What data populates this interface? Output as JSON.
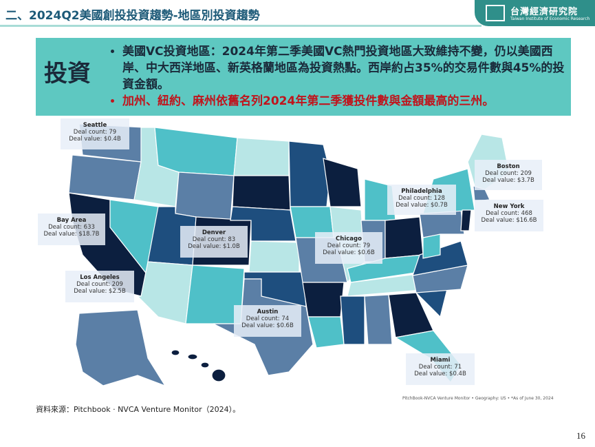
{
  "header": {
    "title": "二、2024Q2美國創投投資趨勢-地區別投資趨勢",
    "logo_name": "台灣經濟研究院",
    "logo_subtitle": "Taiwan Institute of Economic Research"
  },
  "summary": {
    "label": "投資",
    "bullets": [
      "美國VC投資地區：2024年第二季美國VC熱門投資地區大致維持不變，仍以美國西岸、中大西洋地區、新英格蘭地區為投資熱點。西岸約占35%的交易件數與45%的投資金額。",
      "加州、紐約、麻州依舊名列2024年第二季獲投件數與金額最高的三州。"
    ]
  },
  "map": {
    "callouts": [
      {
        "city": "Seattle",
        "deal_count": "Deal count: 79",
        "deal_value": "Deal value: $0.4B"
      },
      {
        "city": "Boston",
        "deal_count": "Deal count: 209",
        "deal_value": "Deal value: $3.7B"
      },
      {
        "city": "Philadelphia",
        "deal_count": "Deal count: 128",
        "deal_value": "Deal value: $0.7B"
      },
      {
        "city": "New York",
        "deal_count": "Deal count: 468",
        "deal_value": "Deal value: $16.6B"
      },
      {
        "city": "Bay Area",
        "deal_count": "Deal count: 633",
        "deal_value": "Deal value: $18.7B"
      },
      {
        "city": "Denver",
        "deal_count": "Deal count: 83",
        "deal_value": "Deal value: $1.0B"
      },
      {
        "city": "Chicago",
        "deal_count": "Deal count: 79",
        "deal_value": "Deal value: $0.6B"
      },
      {
        "city": "Los Angeles",
        "deal_count": "Deal count: 209",
        "deal_value": "Deal value: $2.5B"
      },
      {
        "city": "Austin",
        "deal_count": "Deal count: 74",
        "deal_value": "Deal value: $0.6B"
      },
      {
        "city": "Miami",
        "deal_count": "Deal count: 71",
        "deal_value": "Deal value: $0.4B"
      }
    ],
    "footnote": "PitchBook-NVCA Venture Monitor • Geography: US • *As of June 30, 2024"
  },
  "source": "資料來源：Pitchbook · NVCA Venture Monitor（2024）。",
  "page_number": "16"
}
